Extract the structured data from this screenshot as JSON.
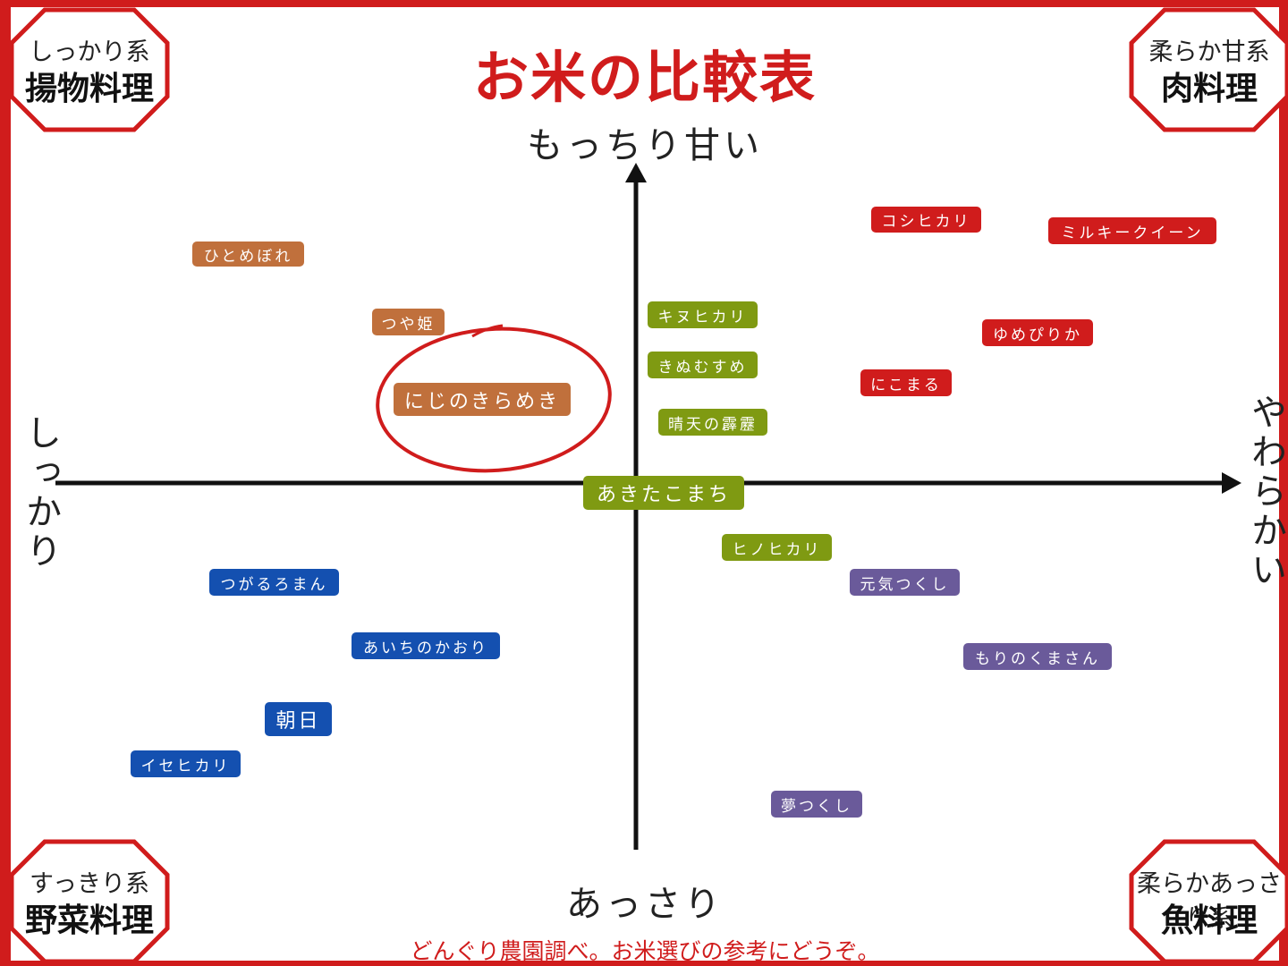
{
  "title": "お米の比較表",
  "axes": {
    "top": "もっちり甘い",
    "bottom": "あっさり",
    "left": "しっかり",
    "right": "やわらかい"
  },
  "corners": [
    {
      "sub": "しっかり系",
      "main": "揚物料理"
    },
    {
      "sub": "柔らか甘系",
      "main": "肉料理"
    },
    {
      "sub": "すっきり系",
      "main": "野菜料理"
    },
    {
      "sub": "柔らかあっさり系",
      "main": "魚料理"
    }
  ],
  "items": [
    {
      "label": "ひとめぼれ",
      "color": "#c0703c"
    },
    {
      "label": "つや姫",
      "color": "#c0703c"
    },
    {
      "label": "にじのきらめき",
      "color": "#c0703c"
    },
    {
      "label": "キヌヒカリ",
      "color": "#7f9a12"
    },
    {
      "label": "きぬむすめ",
      "color": "#7f9a12"
    },
    {
      "label": "晴天の霹靂",
      "color": "#7f9a12"
    },
    {
      "label": "あきたこまち",
      "color": "#7f9a12"
    },
    {
      "label": "ヒノヒカリ",
      "color": "#7f9a12"
    },
    {
      "label": "コシヒカリ",
      "color": "#d01c1c"
    },
    {
      "label": "ミルキークイーン",
      "color": "#d01c1c"
    },
    {
      "label": "ゆめぴりか",
      "color": "#d01c1c"
    },
    {
      "label": "にこまる",
      "color": "#d01c1c"
    },
    {
      "label": "元気つくし",
      "color": "#6a5a9a"
    },
    {
      "label": "もりのくまさん",
      "color": "#6a5a9a"
    },
    {
      "label": "夢つくし",
      "color": "#6a5a9a"
    },
    {
      "label": "つがるろまん",
      "color": "#1450b0"
    },
    {
      "label": "あいちのかおり",
      "color": "#1450b0"
    },
    {
      "label": "朝日",
      "color": "#1450b0"
    },
    {
      "label": "イセヒカリ",
      "color": "#1450b0"
    }
  ],
  "footer": "どんぐり農園調べ。お米選びの参考にどうぞ。"
}
